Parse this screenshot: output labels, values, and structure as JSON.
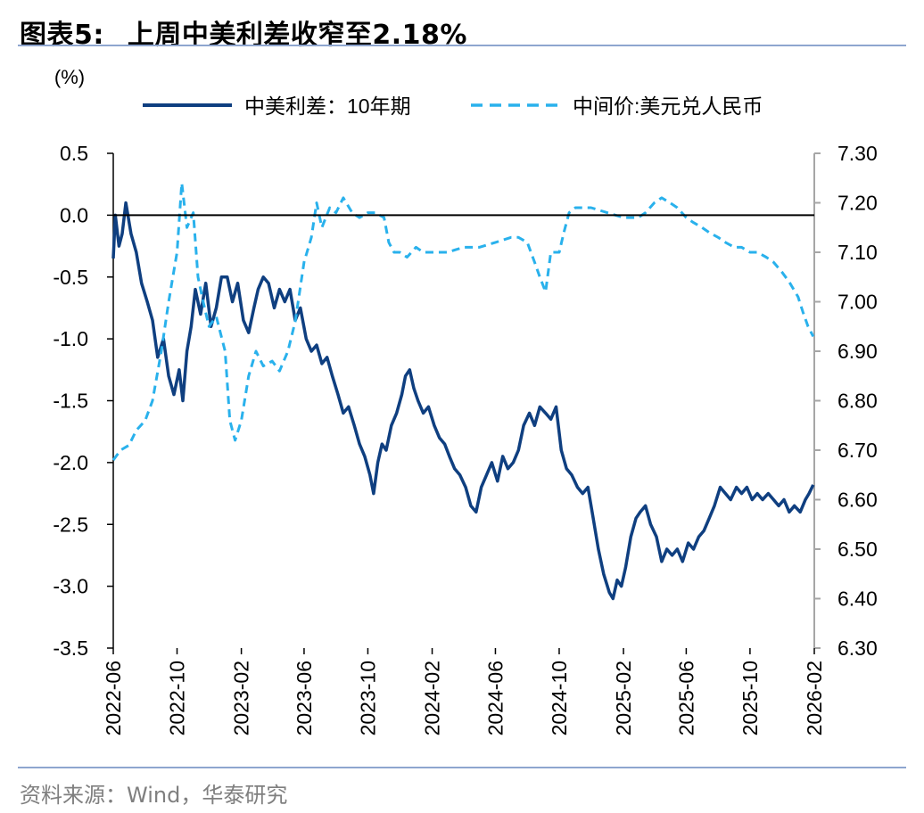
{
  "header": {
    "figure_label": "图表5:",
    "title": "上周中美利差收窄至2.18%"
  },
  "footer": {
    "source": "资料来源：Wind，华泰研究"
  },
  "chart_data": {
    "type": "line",
    "unit_label": "(%)",
    "x_ticks": [
      "2022-06",
      "2022-10",
      "2023-02",
      "2023-06",
      "2023-10",
      "2024-02",
      "2024-06",
      "2024-10",
      "2025-02",
      "2025-06",
      "2025-10",
      "2026-02"
    ],
    "x_range": [
      "2022-06",
      "2026-02"
    ],
    "y_left": {
      "ticks": [
        "0.5",
        "0.0",
        "-0.5",
        "-1.0",
        "-1.5",
        "-2.0",
        "-2.5",
        "-3.0",
        "-3.5"
      ],
      "ylim": [
        -3.5,
        0.5
      ]
    },
    "y_right": {
      "ticks": [
        "7.30",
        "7.20",
        "7.10",
        "7.00",
        "6.90",
        "6.80",
        "6.70",
        "6.60",
        "6.50",
        "6.40",
        "6.30"
      ],
      "ylim": [
        6.3,
        7.3
      ]
    },
    "grid": false,
    "legend_position": "top",
    "series": [
      {
        "name": "中美利差：10年期",
        "axis": "left",
        "color": "#0f3f80",
        "style": "solid",
        "points": [
          [
            "2022-06-01",
            -0.35
          ],
          [
            "2022-06-05",
            0.0
          ],
          [
            "2022-06-12",
            -0.25
          ],
          [
            "2022-06-18",
            -0.15
          ],
          [
            "2022-06-25",
            0.1
          ],
          [
            "2022-07-05",
            -0.15
          ],
          [
            "2022-07-15",
            -0.3
          ],
          [
            "2022-07-25",
            -0.55
          ],
          [
            "2022-08-05",
            -0.7
          ],
          [
            "2022-08-15",
            -0.85
          ],
          [
            "2022-08-25",
            -1.15
          ],
          [
            "2022-09-05",
            -1.0
          ],
          [
            "2022-09-15",
            -1.3
          ],
          [
            "2022-09-25",
            -1.45
          ],
          [
            "2022-10-05",
            -1.25
          ],
          [
            "2022-10-12",
            -1.5
          ],
          [
            "2022-10-20",
            -1.1
          ],
          [
            "2022-10-28",
            -0.9
          ],
          [
            "2022-11-05",
            -0.6
          ],
          [
            "2022-11-15",
            -0.8
          ],
          [
            "2022-11-25",
            -0.55
          ],
          [
            "2022-12-05",
            -0.9
          ],
          [
            "2022-12-15",
            -0.75
          ],
          [
            "2022-12-25",
            -0.5
          ],
          [
            "2023-01-05",
            -0.5
          ],
          [
            "2023-01-15",
            -0.7
          ],
          [
            "2023-01-25",
            -0.55
          ],
          [
            "2023-02-05",
            -0.85
          ],
          [
            "2023-02-15",
            -0.95
          ],
          [
            "2023-02-25",
            -0.75
          ],
          [
            "2023-03-05",
            -0.6
          ],
          [
            "2023-03-15",
            -0.5
          ],
          [
            "2023-03-25",
            -0.55
          ],
          [
            "2023-04-05",
            -0.75
          ],
          [
            "2023-04-15",
            -0.6
          ],
          [
            "2023-04-25",
            -0.7
          ],
          [
            "2023-05-05",
            -0.6
          ],
          [
            "2023-05-15",
            -0.85
          ],
          [
            "2023-05-25",
            -0.75
          ],
          [
            "2023-06-05",
            -1.0
          ],
          [
            "2023-06-15",
            -1.1
          ],
          [
            "2023-06-25",
            -1.05
          ],
          [
            "2023-07-05",
            -1.2
          ],
          [
            "2023-07-15",
            -1.15
          ],
          [
            "2023-07-25",
            -1.3
          ],
          [
            "2023-08-05",
            -1.45
          ],
          [
            "2023-08-15",
            -1.6
          ],
          [
            "2023-08-25",
            -1.55
          ],
          [
            "2023-09-05",
            -1.7
          ],
          [
            "2023-09-15",
            -1.85
          ],
          [
            "2023-09-25",
            -1.95
          ],
          [
            "2023-10-05",
            -2.1
          ],
          [
            "2023-10-12",
            -2.25
          ],
          [
            "2023-10-20",
            -2.0
          ],
          [
            "2023-10-28",
            -1.85
          ],
          [
            "2023-11-05",
            -1.9
          ],
          [
            "2023-11-15",
            -1.7
          ],
          [
            "2023-11-25",
            -1.6
          ],
          [
            "2023-12-05",
            -1.45
          ],
          [
            "2023-12-12",
            -1.3
          ],
          [
            "2023-12-20",
            -1.25
          ],
          [
            "2023-12-28",
            -1.4
          ],
          [
            "2024-01-05",
            -1.5
          ],
          [
            "2024-01-15",
            -1.6
          ],
          [
            "2024-01-25",
            -1.55
          ],
          [
            "2024-02-05",
            -1.7
          ],
          [
            "2024-02-15",
            -1.8
          ],
          [
            "2024-02-25",
            -1.85
          ],
          [
            "2024-03-05",
            -1.95
          ],
          [
            "2024-03-15",
            -2.05
          ],
          [
            "2024-03-25",
            -2.1
          ],
          [
            "2024-04-05",
            -2.2
          ],
          [
            "2024-04-15",
            -2.35
          ],
          [
            "2024-04-25",
            -2.4
          ],
          [
            "2024-05-05",
            -2.2
          ],
          [
            "2024-05-15",
            -2.1
          ],
          [
            "2024-05-25",
            -2.0
          ],
          [
            "2024-06-05",
            -2.15
          ],
          [
            "2024-06-15",
            -1.95
          ],
          [
            "2024-06-25",
            -2.05
          ],
          [
            "2024-07-05",
            -2.0
          ],
          [
            "2024-07-15",
            -1.9
          ],
          [
            "2024-07-25",
            -1.7
          ],
          [
            "2024-08-05",
            -1.6
          ],
          [
            "2024-08-15",
            -1.7
          ],
          [
            "2024-08-25",
            -1.55
          ],
          [
            "2024-09-05",
            -1.6
          ],
          [
            "2024-09-15",
            -1.65
          ],
          [
            "2024-09-25",
            -1.55
          ],
          [
            "2024-10-05",
            -1.9
          ],
          [
            "2024-10-15",
            -2.05
          ],
          [
            "2024-10-25",
            -2.1
          ],
          [
            "2024-11-05",
            -2.2
          ],
          [
            "2024-11-15",
            -2.25
          ],
          [
            "2024-11-25",
            -2.2
          ],
          [
            "2024-12-05",
            -2.45
          ],
          [
            "2024-12-15",
            -2.7
          ],
          [
            "2024-12-25",
            -2.9
          ],
          [
            "2025-01-05",
            -3.05
          ],
          [
            "2025-01-12",
            -3.1
          ],
          [
            "2025-01-20",
            -2.95
          ],
          [
            "2025-01-28",
            -3.0
          ],
          [
            "2025-02-05",
            -2.85
          ],
          [
            "2025-02-15",
            -2.6
          ],
          [
            "2025-02-25",
            -2.45
          ],
          [
            "2025-03-05",
            -2.4
          ],
          [
            "2025-03-15",
            -2.35
          ],
          [
            "2025-03-25",
            -2.5
          ],
          [
            "2025-04-05",
            -2.6
          ],
          [
            "2025-04-15",
            -2.8
          ],
          [
            "2025-04-25",
            -2.7
          ],
          [
            "2025-05-05",
            -2.75
          ],
          [
            "2025-05-15",
            -2.7
          ],
          [
            "2025-05-25",
            -2.8
          ],
          [
            "2025-06-05",
            -2.65
          ],
          [
            "2025-06-15",
            -2.7
          ],
          [
            "2025-06-25",
            -2.6
          ],
          [
            "2025-07-05",
            -2.55
          ],
          [
            "2025-07-15",
            -2.45
          ],
          [
            "2025-07-25",
            -2.35
          ],
          [
            "2025-08-05",
            -2.2
          ],
          [
            "2025-08-15",
            -2.25
          ],
          [
            "2025-08-25",
            -2.3
          ],
          [
            "2025-09-05",
            -2.2
          ],
          [
            "2025-09-15",
            -2.25
          ],
          [
            "2025-09-25",
            -2.2
          ],
          [
            "2025-10-05",
            -2.3
          ],
          [
            "2025-10-15",
            -2.25
          ],
          [
            "2025-10-25",
            -2.3
          ],
          [
            "2025-11-05",
            -2.25
          ],
          [
            "2025-11-15",
            -2.3
          ],
          [
            "2025-11-25",
            -2.35
          ],
          [
            "2025-12-05",
            -2.3
          ],
          [
            "2025-12-15",
            -2.4
          ],
          [
            "2025-12-25",
            -2.35
          ],
          [
            "2026-01-05",
            -2.4
          ],
          [
            "2026-01-15",
            -2.3
          ],
          [
            "2026-01-22",
            -2.25
          ],
          [
            "2026-01-30",
            -2.18
          ]
        ]
      },
      {
        "name": "中间价:美元兑人民币",
        "axis": "right",
        "color": "#29b1ec",
        "style": "dashed",
        "points": [
          [
            "2022-06-01",
            6.68
          ],
          [
            "2022-06-15",
            6.7
          ],
          [
            "2022-07-01",
            6.71
          ],
          [
            "2022-07-15",
            6.74
          ],
          [
            "2022-08-01",
            6.76
          ],
          [
            "2022-08-15",
            6.8
          ],
          [
            "2022-09-01",
            6.9
          ],
          [
            "2022-09-15",
            7.0
          ],
          [
            "2022-10-01",
            7.1
          ],
          [
            "2022-10-10",
            7.24
          ],
          [
            "2022-10-20",
            7.15
          ],
          [
            "2022-11-01",
            7.18
          ],
          [
            "2022-11-10",
            7.05
          ],
          [
            "2022-11-20",
            7.0
          ],
          [
            "2022-12-01",
            6.95
          ],
          [
            "2022-12-15",
            6.97
          ],
          [
            "2023-01-01",
            6.9
          ],
          [
            "2023-01-10",
            6.76
          ],
          [
            "2023-01-20",
            6.72
          ],
          [
            "2023-02-01",
            6.76
          ],
          [
            "2023-02-15",
            6.85
          ],
          [
            "2023-03-01",
            6.9
          ],
          [
            "2023-03-15",
            6.87
          ],
          [
            "2023-04-01",
            6.88
          ],
          [
            "2023-04-15",
            6.86
          ],
          [
            "2023-05-01",
            6.9
          ],
          [
            "2023-05-15",
            6.96
          ],
          [
            "2023-06-01",
            7.08
          ],
          [
            "2023-06-15",
            7.13
          ],
          [
            "2023-06-25",
            7.2
          ],
          [
            "2023-07-05",
            7.15
          ],
          [
            "2023-07-20",
            7.19
          ],
          [
            "2023-08-01",
            7.18
          ],
          [
            "2023-08-15",
            7.21
          ],
          [
            "2023-09-01",
            7.18
          ],
          [
            "2023-09-15",
            7.17
          ],
          [
            "2023-10-01",
            7.18
          ],
          [
            "2023-10-15",
            7.18
          ],
          [
            "2023-11-01",
            7.17
          ],
          [
            "2023-11-10",
            7.12
          ],
          [
            "2023-11-20",
            7.1
          ],
          [
            "2023-12-01",
            7.1
          ],
          [
            "2023-12-15",
            7.09
          ],
          [
            "2024-01-01",
            7.11
          ],
          [
            "2024-01-15",
            7.1
          ],
          [
            "2024-02-01",
            7.1
          ],
          [
            "2024-03-01",
            7.1
          ],
          [
            "2024-04-01",
            7.11
          ],
          [
            "2024-05-01",
            7.11
          ],
          [
            "2024-06-01",
            7.12
          ],
          [
            "2024-07-01",
            7.13
          ],
          [
            "2024-07-15",
            7.13
          ],
          [
            "2024-08-01",
            7.12
          ],
          [
            "2024-08-15",
            7.08
          ],
          [
            "2024-08-25",
            7.05
          ],
          [
            "2024-09-05",
            7.02
          ],
          [
            "2024-09-15",
            7.1
          ],
          [
            "2024-10-01",
            7.1
          ],
          [
            "2024-10-10",
            7.14
          ],
          [
            "2024-10-20",
            7.18
          ],
          [
            "2024-11-01",
            7.19
          ],
          [
            "2024-12-01",
            7.19
          ],
          [
            "2025-01-01",
            7.18
          ],
          [
            "2025-02-01",
            7.17
          ],
          [
            "2025-03-01",
            7.17
          ],
          [
            "2025-03-15",
            7.18
          ],
          [
            "2025-04-01",
            7.2
          ],
          [
            "2025-04-15",
            7.21
          ],
          [
            "2025-05-01",
            7.2
          ],
          [
            "2025-05-15",
            7.19
          ],
          [
            "2025-06-01",
            7.17
          ],
          [
            "2025-06-15",
            7.16
          ],
          [
            "2025-07-01",
            7.15
          ],
          [
            "2025-07-15",
            7.14
          ],
          [
            "2025-08-01",
            7.13
          ],
          [
            "2025-08-15",
            7.12
          ],
          [
            "2025-09-01",
            7.11
          ],
          [
            "2025-09-15",
            7.11
          ],
          [
            "2025-10-01",
            7.1
          ],
          [
            "2025-10-15",
            7.1
          ],
          [
            "2025-11-01",
            7.09
          ],
          [
            "2025-11-15",
            7.08
          ],
          [
            "2025-12-01",
            7.06
          ],
          [
            "2025-12-15",
            7.04
          ],
          [
            "2026-01-01",
            7.01
          ],
          [
            "2026-01-10",
            6.98
          ],
          [
            "2026-01-20",
            6.95
          ],
          [
            "2026-01-30",
            6.93
          ]
        ]
      }
    ]
  }
}
